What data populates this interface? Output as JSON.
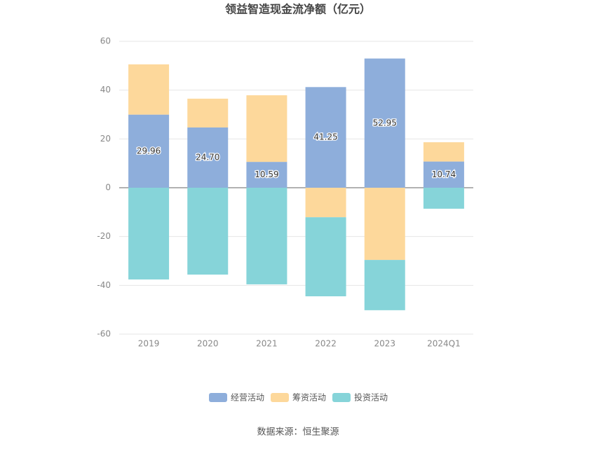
{
  "chart_data": {
    "type": "stacked_bar",
    "title": "领益智造现金流净额（亿元）",
    "categories": [
      "2019",
      "2020",
      "2021",
      "2022",
      "2023",
      "2024Q1"
    ],
    "series": [
      {
        "name": "经营活动",
        "color": "#8eaedb",
        "values": [
          29.96,
          24.7,
          10.59,
          41.25,
          52.95,
          10.74
        ],
        "value_labels": [
          "29.96",
          "24.70",
          "10.59",
          "41.25",
          "52.95",
          "10.74"
        ]
      },
      {
        "name": "筹资活动",
        "color": "#fdd89b",
        "values": [
          20.6,
          11.8,
          27.3,
          -12.1,
          -29.6,
          7.9
        ]
      },
      {
        "name": "投资活动",
        "color": "#86d4d9",
        "values": [
          -37.6,
          -35.6,
          -39.6,
          -32.4,
          -20.6,
          -8.6
        ]
      }
    ],
    "ylim": [
      -60,
      60
    ],
    "yticks": [
      -60,
      -40,
      -20,
      0,
      20,
      40,
      60
    ],
    "grid": true,
    "legend": "bottom",
    "source": "数据来源：恒生聚源"
  }
}
